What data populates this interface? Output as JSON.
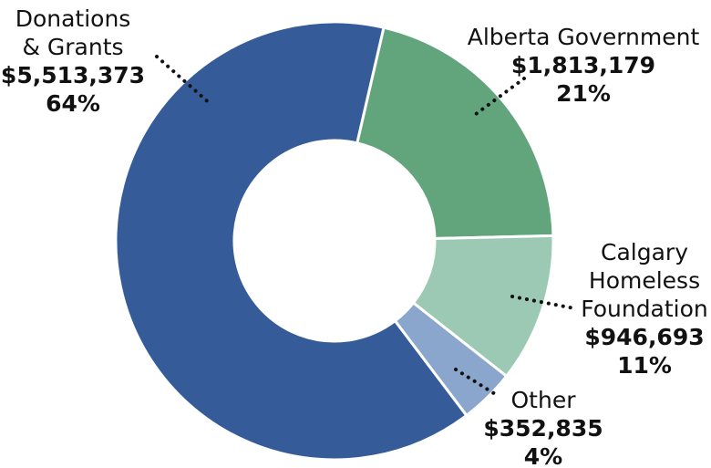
{
  "chart_data": {
    "type": "donut",
    "categories": [
      [
        "Alberta Government"
      ],
      [
        "Calgary",
        "Homeless",
        "Foundation"
      ],
      [
        "Other"
      ],
      [
        "Donations",
        "& Grants"
      ]
    ],
    "values": [
      1813179,
      946693,
      352835,
      5513373
    ],
    "value_labels": [
      "$1,813,179",
      "$946,693",
      "$352,835",
      "$5,513,373"
    ],
    "percentages": [
      21,
      11,
      4,
      64
    ],
    "percentage_labels": [
      "21%",
      "11%",
      "4%",
      "64%"
    ],
    "colors": [
      "#62a57d",
      "#9cc9b4",
      "#8aa6cd",
      "#355c99"
    ]
  }
}
